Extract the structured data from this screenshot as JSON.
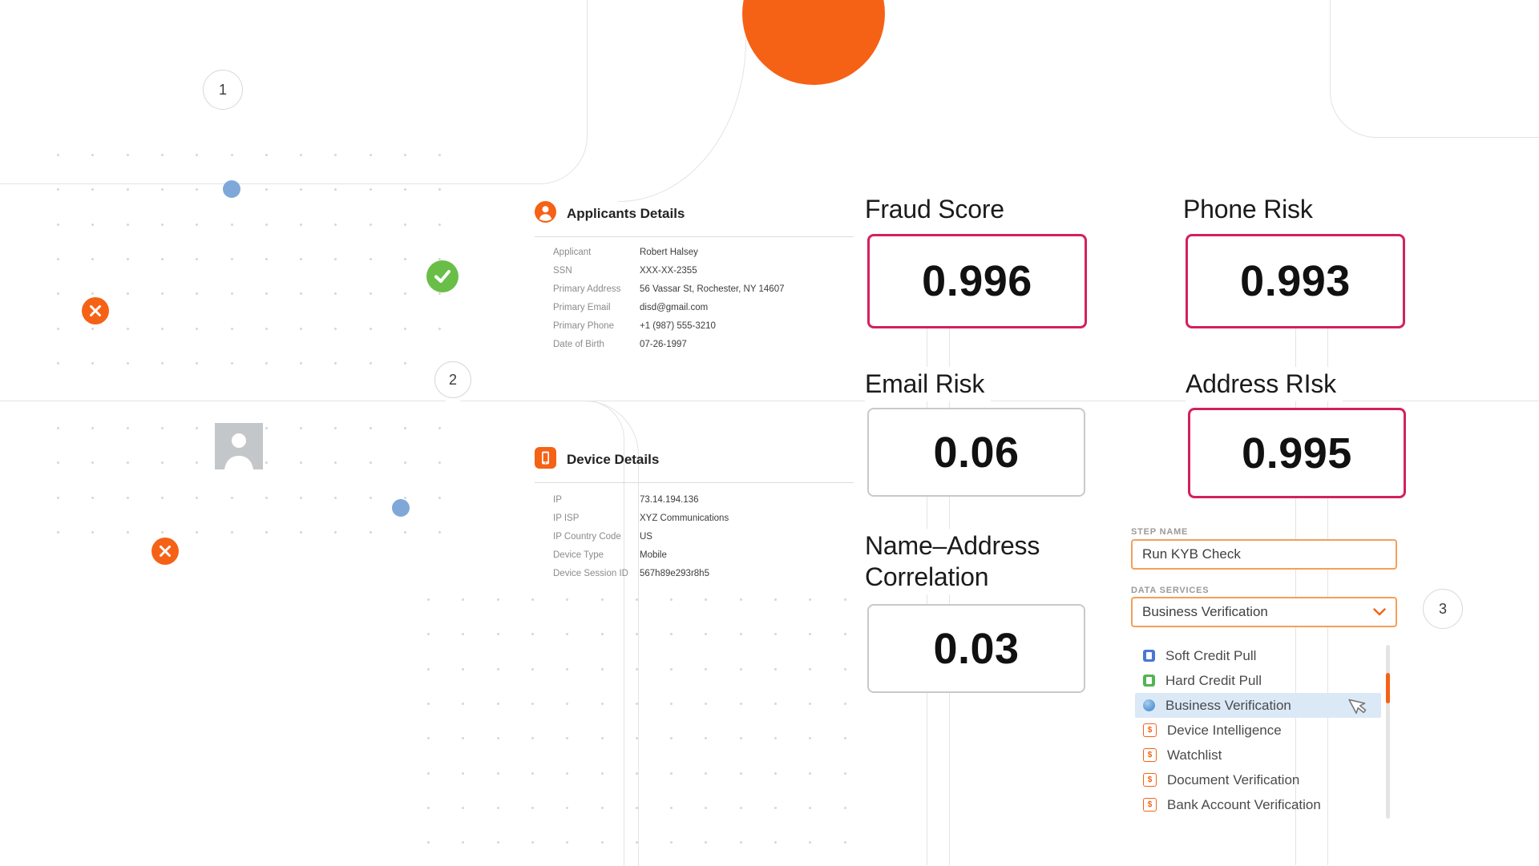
{
  "markers": {
    "m1": "1",
    "m2": "2",
    "m3": "3"
  },
  "applicant_card": {
    "title": "Applicants Details",
    "fields": [
      {
        "label": "Applicant",
        "value": "Robert Halsey"
      },
      {
        "label": "SSN",
        "value": "XXX-XX-2355"
      },
      {
        "label": "Primary Address",
        "value": "56 Vassar St, Rochester, NY 14607"
      },
      {
        "label": "Primary Email",
        "value": "disd@gmail.com"
      },
      {
        "label": "Primary Phone",
        "value": "+1 (987) 555-3210"
      },
      {
        "label": "Date of Birth",
        "value": "07-26-1997"
      }
    ]
  },
  "device_card": {
    "title": "Device Details",
    "fields": [
      {
        "label": "IP",
        "value": "73.14.194.136"
      },
      {
        "label": "IP ISP",
        "value": "XYZ Communications"
      },
      {
        "label": "IP Country Code",
        "value": "US"
      },
      {
        "label": "Device Type",
        "value": "Mobile"
      },
      {
        "label": "Device Session ID",
        "value": "567h89e293r8h5"
      }
    ]
  },
  "scores": [
    {
      "title": "Fraud Score",
      "value": "0.996",
      "level": "high"
    },
    {
      "title": "Phone Risk",
      "value": "0.993",
      "level": "high"
    },
    {
      "title": "Email Risk",
      "value": "0.06",
      "level": "low"
    },
    {
      "title": "Address RIsk",
      "value": "0.995",
      "level": "high"
    },
    {
      "title": "Name–Address Correlation",
      "value": "0.03",
      "level": "low"
    }
  ],
  "step_form": {
    "step_name_label": "STEP NAME",
    "step_name_value": "Run KYB Check",
    "data_services_label": "DATA SERVICES",
    "data_services_value": "Business Verification",
    "options": [
      {
        "label": "Soft Credit Pull",
        "icon": "document-blue-icon"
      },
      {
        "label": "Hard Credit Pull",
        "icon": "document-green-icon"
      },
      {
        "label": "Business Verification",
        "icon": "globe-blue-icon",
        "selected": true
      },
      {
        "label": "Device Intelligence",
        "icon": "dollar-orange-icon"
      },
      {
        "label": "Watchlist",
        "icon": "dollar-orange-icon"
      },
      {
        "label": "Document Verification",
        "icon": "dollar-orange-icon"
      },
      {
        "label": "Bank Account Verification",
        "icon": "dollar-orange-icon"
      }
    ]
  },
  "colors": {
    "accent_orange": "#F56216",
    "risk_high_pink": "#D2215F",
    "risk_low_gray": "#C9C9C9",
    "blue_dot": "#7FA8D8",
    "green_check": "#69BE47",
    "option_highlight": "#DBE9F7"
  }
}
